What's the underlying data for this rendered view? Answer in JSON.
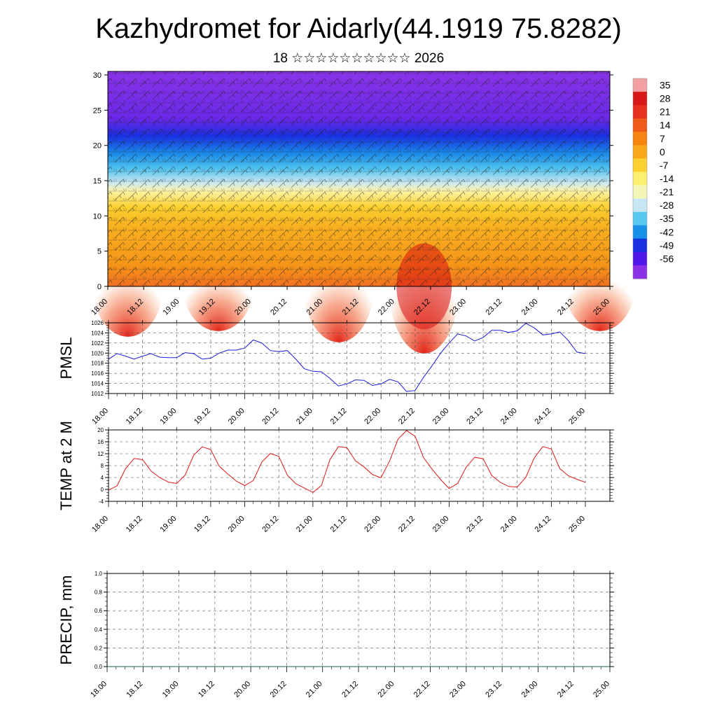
{
  "header": {
    "title": "Kazhydromet for Aidarly(44.1919 75.8282)",
    "subtitle": "18 ☆☆☆☆☆☆☆☆☆☆ 2026"
  },
  "colors": {
    "pmsl_line": "#1a1adf",
    "temp_line": "#e01818",
    "precip_line": "#0a6a3a",
    "grid": "#555555",
    "axis": "#000000"
  },
  "chart_data": [
    {
      "type": "heatmap",
      "name": "cross-section",
      "title": "",
      "xlabel": "",
      "ylabel": "",
      "x_ticks": [
        "18.00",
        "18.12",
        "19.00",
        "19.12",
        "20.00",
        "20.12",
        "21.00",
        "21.12",
        "22.00",
        "22.12",
        "23.00",
        "23.12",
        "24.00",
        "24.12",
        "25.00"
      ],
      "y_ticks": [
        0,
        5,
        10,
        15,
        20,
        25,
        30
      ],
      "ylim": [
        0,
        30.5
      ],
      "colorbar_labels": [
        "35",
        "28",
        "21",
        "14",
        "7",
        "0",
        "-7",
        "-14",
        "-21",
        "-28",
        "-35",
        "-42",
        "-49",
        "-56"
      ],
      "colorbar_colors": [
        "#f2a0a0",
        "#d81818",
        "#e83020",
        "#f05a18",
        "#f58410",
        "#f8a818",
        "#fbd030",
        "#fdf070",
        "#f4f6b8",
        "#c8e6f4",
        "#58c8f0",
        "#1890e8",
        "#1a30e0",
        "#5018e8",
        "#8a30e8"
      ],
      "wind_barbs": "overlay"
    },
    {
      "type": "line",
      "name": "pmsl",
      "ylabel": "PMSL",
      "x_ticks": [
        "18.00",
        "18.12",
        "19.00",
        "19.12",
        "20.00",
        "20.12",
        "21.00",
        "21.12",
        "22.00",
        "22.12",
        "23.00",
        "23.12",
        "24.00",
        "24.12",
        "25.00"
      ],
      "y_ticks": [
        1012,
        1014,
        1016,
        1018,
        1020,
        1022,
        1024,
        1026
      ],
      "ylim": [
        1012,
        1026
      ],
      "x_hours": [
        0,
        3,
        6,
        9,
        12,
        15,
        18,
        21,
        24,
        27,
        30,
        33,
        36,
        39,
        42,
        45,
        48,
        51,
        54,
        57,
        60,
        63,
        66,
        69,
        72,
        75,
        78,
        81,
        84,
        87,
        90,
        93,
        96,
        99,
        102,
        105,
        108,
        111,
        114,
        117,
        120,
        123,
        126,
        129,
        132,
        135,
        138,
        141,
        144,
        147,
        150,
        153,
        156,
        159,
        162,
        165,
        168
      ],
      "values": [
        1018.8,
        1019.9,
        1019.4,
        1018.8,
        1019.4,
        1019.9,
        1019.2,
        1019.1,
        1019.1,
        1020.1,
        1019.9,
        1018.8,
        1019.0,
        1020.0,
        1020.6,
        1020.6,
        1021.0,
        1022.6,
        1022.0,
        1020.5,
        1020.3,
        1020.5,
        1018.8,
        1016.9,
        1016.4,
        1016.3,
        1015.0,
        1013.5,
        1013.9,
        1014.7,
        1014.6,
        1013.6,
        1013.9,
        1014.8,
        1014.3,
        1012.4,
        1012.6,
        1015.2,
        1017.5,
        1020.0,
        1022.0,
        1023.8,
        1023.4,
        1022.4,
        1023.1,
        1024.5,
        1024.5,
        1024.1,
        1024.4,
        1025.9,
        1025.0,
        1023.6,
        1023.8,
        1024.2,
        1022.5,
        1020.2,
        1019.9
      ]
    },
    {
      "type": "line",
      "name": "temp",
      "ylabel": "TEMP at 2 M",
      "x_ticks": [
        "18.00",
        "18.12",
        "19.00",
        "19.12",
        "20.00",
        "20.12",
        "21.00",
        "21.12",
        "22.00",
        "22.12",
        "23.00",
        "23.12",
        "24.00",
        "24.12",
        "25.00"
      ],
      "y_ticks": [
        -4,
        0,
        4,
        8,
        12,
        16,
        20
      ],
      "ylim": [
        -4,
        20
      ],
      "x_hours": [
        0,
        3,
        6,
        9,
        12,
        15,
        18,
        21,
        24,
        27,
        30,
        33,
        36,
        39,
        42,
        45,
        48,
        51,
        54,
        57,
        60,
        63,
        66,
        69,
        72,
        75,
        78,
        81,
        84,
        87,
        90,
        93,
        96,
        99,
        102,
        105,
        108,
        111,
        114,
        117,
        120,
        123,
        126,
        129,
        132,
        135,
        138,
        141,
        144,
        147,
        150,
        153,
        156,
        159,
        162,
        165,
        168
      ],
      "values": [
        -0.2,
        1.2,
        7.0,
        10.4,
        10.0,
        6.2,
        4.0,
        2.5,
        2.0,
        4.8,
        11.5,
        14.3,
        13.4,
        7.8,
        5.2,
        2.8,
        1.3,
        3.0,
        9.2,
        12.1,
        11.1,
        4.8,
        1.9,
        0.5,
        -1.0,
        1.3,
        10.0,
        14.4,
        14.0,
        9.6,
        7.6,
        5.0,
        3.9,
        9.5,
        16.9,
        19.8,
        17.9,
        10.7,
        6.8,
        3.3,
        0.3,
        2.0,
        7.5,
        10.8,
        10.3,
        4.7,
        2.4,
        1.0,
        0.8,
        4.0,
        10.6,
        14.4,
        13.6,
        7.0,
        4.6,
        3.4,
        2.4
      ]
    },
    {
      "type": "line",
      "name": "precip",
      "ylabel": "PRECIP, mm",
      "x_ticks": [
        "18.00",
        "18.12",
        "19.00",
        "19.12",
        "20.00",
        "20.12",
        "21.00",
        "21.12",
        "22.00",
        "22.12",
        "23.00",
        "23.12",
        "24.00",
        "24.12",
        "25.00"
      ],
      "y_ticks": [
        "0.0",
        "0.2",
        "0.4",
        "0.6",
        "0.8",
        "1.0"
      ],
      "ylim": [
        0,
        1.0
      ],
      "x_hours": [
        0,
        168
      ],
      "values": [
        0,
        0
      ]
    }
  ]
}
